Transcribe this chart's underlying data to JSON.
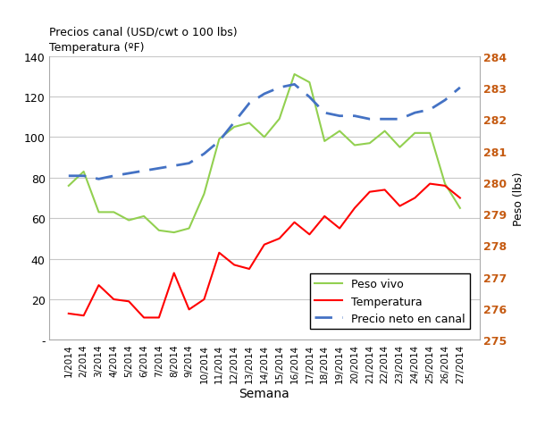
{
  "weeks": [
    "1/2014",
    "2/2014",
    "3/2014",
    "4/2014",
    "5/2014",
    "6/2014",
    "7/2014",
    "8/2014",
    "9/2014",
    "10/2014",
    "11/2014",
    "12/2014",
    "13/2014",
    "14/2014",
    "15/2014",
    "16/2014",
    "17/2014",
    "18/2014",
    "19/2014",
    "20/2014",
    "21/2014",
    "22/2014",
    "23/2014",
    "24/2014",
    "25/2014",
    "26/2014",
    "27/2014"
  ],
  "peso_vivo": [
    76,
    83,
    63,
    63,
    59,
    61,
    54,
    53,
    55,
    72,
    99,
    105,
    107,
    100,
    109,
    131,
    127,
    98,
    103,
    96,
    97,
    103,
    95,
    102,
    102,
    77,
    65
  ],
  "temperatura": [
    13,
    12,
    27,
    20,
    19,
    11,
    11,
    33,
    15,
    20,
    43,
    37,
    35,
    47,
    50,
    58,
    52,
    61,
    55,
    65,
    73,
    74,
    66,
    70,
    77,
    76,
    70
  ],
  "precio_canal": [
    280.2,
    280.2,
    280.1,
    280.2,
    null,
    null,
    null,
    null,
    280.6,
    280.9,
    281.3,
    281.9,
    282.5,
    282.8,
    283.0,
    283.1,
    282.7,
    282.2,
    282.1,
    282.1,
    282.0,
    282.0,
    282.0,
    282.2,
    282.3,
    282.6,
    283.0
  ],
  "left_title_line1": "Temperatura (ºF)",
  "left_title_line2": "Precios canal (USD/cwt o 100 lbs)",
  "right_ylabel": "Peso (lbs)",
  "xlabel": "Semana",
  "left_ylim": [
    0,
    140
  ],
  "left_yticks": [
    0,
    20,
    40,
    60,
    80,
    100,
    120,
    140
  ],
  "left_yticklabels": [
    "-",
    "20",
    "40",
    "60",
    "80",
    "100",
    "120",
    "140"
  ],
  "right_ylim": [
    275,
    284
  ],
  "right_yticks": [
    275,
    276,
    277,
    278,
    279,
    280,
    281,
    282,
    283,
    284
  ],
  "peso_vivo_color": "#92D050",
  "temperatura_color": "#FF0000",
  "precio_canal_color": "#4472C4",
  "grid_color": "#C8C8C8",
  "legend_labels": [
    "Peso vivo",
    "Temperatura",
    "Precio neto en canal"
  ],
  "right_tick_color": "#C55A11"
}
